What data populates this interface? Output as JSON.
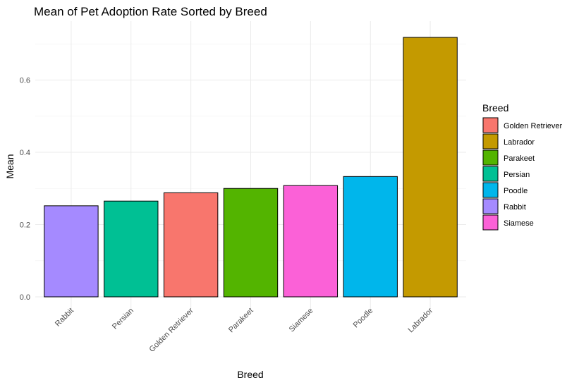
{
  "chart_data": {
    "type": "bar",
    "title": "Mean of Pet Adoption Rate Sorted by Breed",
    "xlabel": "Breed",
    "ylabel": "Mean",
    "categories": [
      "Rabbit",
      "Persian",
      "Golden Retriever",
      "Parakeet",
      "Siamese",
      "Poodle",
      "Labrador"
    ],
    "values": [
      0.252,
      0.265,
      0.288,
      0.3,
      0.308,
      0.333,
      0.718
    ],
    "ylim": [
      0,
      0.74
    ],
    "yticks": [
      0.0,
      0.2,
      0.4,
      0.6
    ],
    "ytick_labels": [
      "0.0",
      "0.2",
      "0.4",
      "0.6"
    ],
    "grid": true,
    "legend": {
      "title": "Breed",
      "placement": "right",
      "entries": [
        "Golden Retriever",
        "Labrador",
        "Parakeet",
        "Persian",
        "Poodle",
        "Rabbit",
        "Siamese"
      ]
    },
    "colors": {
      "Golden Retriever": "#F8766D",
      "Labrador": "#C49A00",
      "Parakeet": "#53B400",
      "Persian": "#00C094",
      "Poodle": "#00B6EB",
      "Rabbit": "#A58AFF",
      "Siamese": "#FB61D7"
    }
  }
}
